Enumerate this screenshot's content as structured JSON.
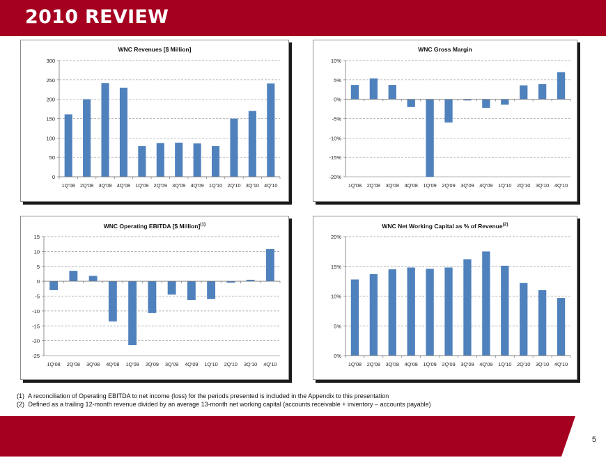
{
  "slide": {
    "title": "2010 REVIEW",
    "page_number": "5"
  },
  "colors": {
    "brand_red": "#a5001f",
    "bar_blue": "#4f81bd",
    "grid": "#9a9a9a"
  },
  "footnotes": [
    {
      "num": "(1)",
      "text": "A reconciliation of Operating EBITDA to net income (loss) for the periods presented is included in the Appendix to this presentation"
    },
    {
      "num": "(2)",
      "text": "Defined as a trailing 12-month revenue divided by an average 13-month net working capital (accounts receivable + inventory – accounts payable)"
    }
  ],
  "chart_data": [
    {
      "type": "bar",
      "title": "WNC Revenues [$ Million]",
      "title_sup": "",
      "categories": [
        "1Q'08",
        "2Q'08",
        "3Q'08",
        "4Q'08",
        "1Q'09",
        "2Q'09",
        "3Q'09",
        "4Q'09",
        "1Q'10",
        "2Q'10",
        "3Q'10",
        "4Q'10"
      ],
      "values": [
        161,
        200,
        242,
        230,
        79,
        87,
        88,
        86,
        79,
        150,
        170,
        241
      ],
      "ylim": [
        0,
        300
      ],
      "yticks": [
        0,
        50,
        100,
        150,
        200,
        250,
        300
      ],
      "ytick_labels": [
        "0",
        "50",
        "100",
        "150",
        "200",
        "250",
        "300"
      ],
      "grid": true
    },
    {
      "type": "bar",
      "title": "WNC Gross Margin",
      "title_sup": "",
      "categories": [
        "1Q'08",
        "2Q'08",
        "3Q'08",
        "4Q'08",
        "1Q'09",
        "2Q'09",
        "3Q'09",
        "4Q'09",
        "1Q'10",
        "2Q'10",
        "3Q'10",
        "4Q'10"
      ],
      "values": [
        3.7,
        5.4,
        3.7,
        -2.0,
        -20.0,
        -6.0,
        -0.3,
        -2.2,
        -1.4,
        3.6,
        3.9,
        7.0
      ],
      "ylim": [
        -20,
        10
      ],
      "yticks": [
        -20,
        -15,
        -10,
        -5,
        0,
        5,
        10
      ],
      "ytick_labels": [
        "-20%",
        "-15%",
        "-10%",
        "-5%",
        "0%",
        "5%",
        "10%"
      ],
      "grid": true
    },
    {
      "type": "bar",
      "title": "WNC Operating EBITDA [$ Million]",
      "title_sup": "(1)",
      "categories": [
        "1Q'08",
        "2Q'08",
        "3Q'08",
        "4Q'08",
        "1Q'09",
        "2Q'09",
        "3Q'09",
        "4Q'09",
        "1Q'10",
        "2Q'10",
        "3Q'10",
        "4Q'10"
      ],
      "values": [
        -3.0,
        3.5,
        1.8,
        -13.5,
        -21.5,
        -10.7,
        -4.5,
        -6.3,
        -6.0,
        -0.5,
        0.5,
        10.8
      ],
      "ylim": [
        -25,
        15
      ],
      "yticks": [
        -25,
        -20,
        -15,
        -10,
        -5,
        0,
        5,
        10,
        15
      ],
      "ytick_labels": [
        "-25",
        "-20",
        "-15",
        "-10",
        "-5",
        "0",
        "5",
        "10",
        "15"
      ],
      "grid": true
    },
    {
      "type": "bar",
      "title": "WNC Net Working Capital as % of Revenue",
      "title_sup": "(2)",
      "categories": [
        "1Q'08",
        "2Q'08",
        "3Q'08",
        "4Q'08",
        "1Q'09",
        "2Q'09",
        "3Q'09",
        "4Q'09",
        "1Q'10",
        "2Q'10",
        "3Q'10",
        "4Q'10"
      ],
      "values": [
        12.8,
        13.7,
        14.5,
        14.8,
        14.6,
        14.8,
        16.2,
        17.5,
        15.1,
        12.2,
        11.0,
        9.7
      ],
      "ylim": [
        0,
        20
      ],
      "yticks": [
        0,
        5,
        10,
        15,
        20
      ],
      "ytick_labels": [
        "0%",
        "5%",
        "10%",
        "15%",
        "20%"
      ],
      "grid": true
    }
  ]
}
